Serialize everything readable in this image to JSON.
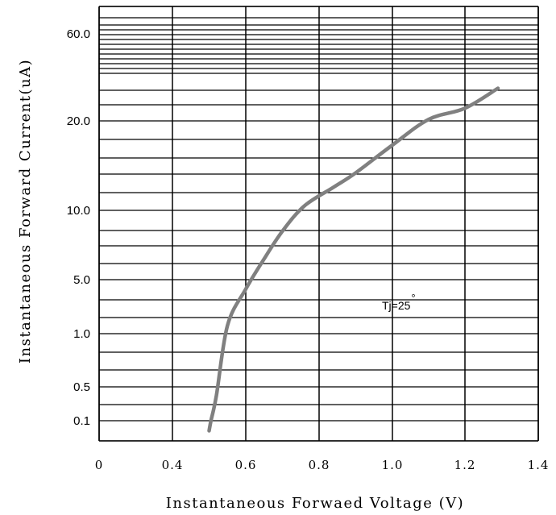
{
  "chart_data": {
    "type": "line",
    "xlabel": "Instantaneous Forwaed Voltage (V)",
    "ylabel": "Instantaneous Forward Current(uA)",
    "x_ticks": [
      "0",
      "0.4",
      "0.6",
      "0.8",
      "1.0",
      "1.2",
      "1.4"
    ],
    "y_ticks": [
      "60.0",
      "20.0",
      "10.0",
      "5.0",
      "1.0",
      "0.5",
      "0.1"
    ],
    "xlim": [
      0,
      1.4
    ],
    "grid": true,
    "annotation": {
      "text": "Tj=25",
      "superscript": "°"
    },
    "series": [
      {
        "color": "#808080",
        "x": [
          0.5,
          0.505,
          0.52,
          0.55,
          0.6,
          0.65,
          0.7,
          0.76,
          0.84,
          0.9,
          1.0,
          1.1,
          1.2,
          1.29
        ],
        "y": [
          0.05,
          0.1,
          0.4,
          1.6,
          4.3,
          6.5,
          8.5,
          10.5,
          12.6,
          14.2,
          17.3,
          20.7,
          25.8,
          35
        ]
      }
    ]
  }
}
